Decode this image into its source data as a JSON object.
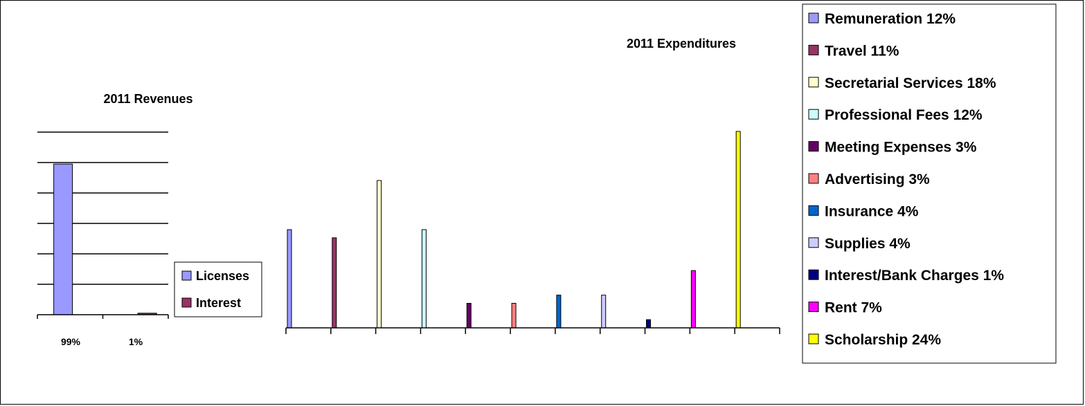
{
  "chart_data": [
    {
      "type": "bar",
      "title": "2011 Revenues",
      "categories": [
        "99%",
        "1%"
      ],
      "series": [
        {
          "name": "Licenses",
          "values": [
            99,
            0
          ],
          "color": "#9999FF"
        },
        {
          "name": "Interest",
          "values": [
            0,
            1
          ],
          "color": "#993366"
        }
      ],
      "ylim": [
        0,
        120
      ],
      "grid": true,
      "legend": "right"
    },
    {
      "type": "bar",
      "title": "2011 Expenditures",
      "categories": [
        "Remuneration 12%",
        "Travel 11%",
        "Secretarial Services 18%",
        "Professional Fees 12%",
        "Meeting Expenses 3%",
        "Advertising 3%",
        "Insurance 4%",
        "Supplies 4%",
        "Interest/Bank Charges 1%",
        "Rent 7%",
        "Scholarship 24%"
      ],
      "values": [
        12,
        11,
        18,
        12,
        3,
        3,
        4,
        4,
        1,
        7,
        24
      ],
      "colors": [
        "#9999FF",
        "#993366",
        "#FFFFCC",
        "#CCFFFF",
        "#660066",
        "#FF8080",
        "#0066CC",
        "#CCCCFF",
        "#000080",
        "#FF00FF",
        "#FFFF00"
      ],
      "ylim": [
        0,
        24
      ],
      "grid": false,
      "legend": "right"
    }
  ]
}
